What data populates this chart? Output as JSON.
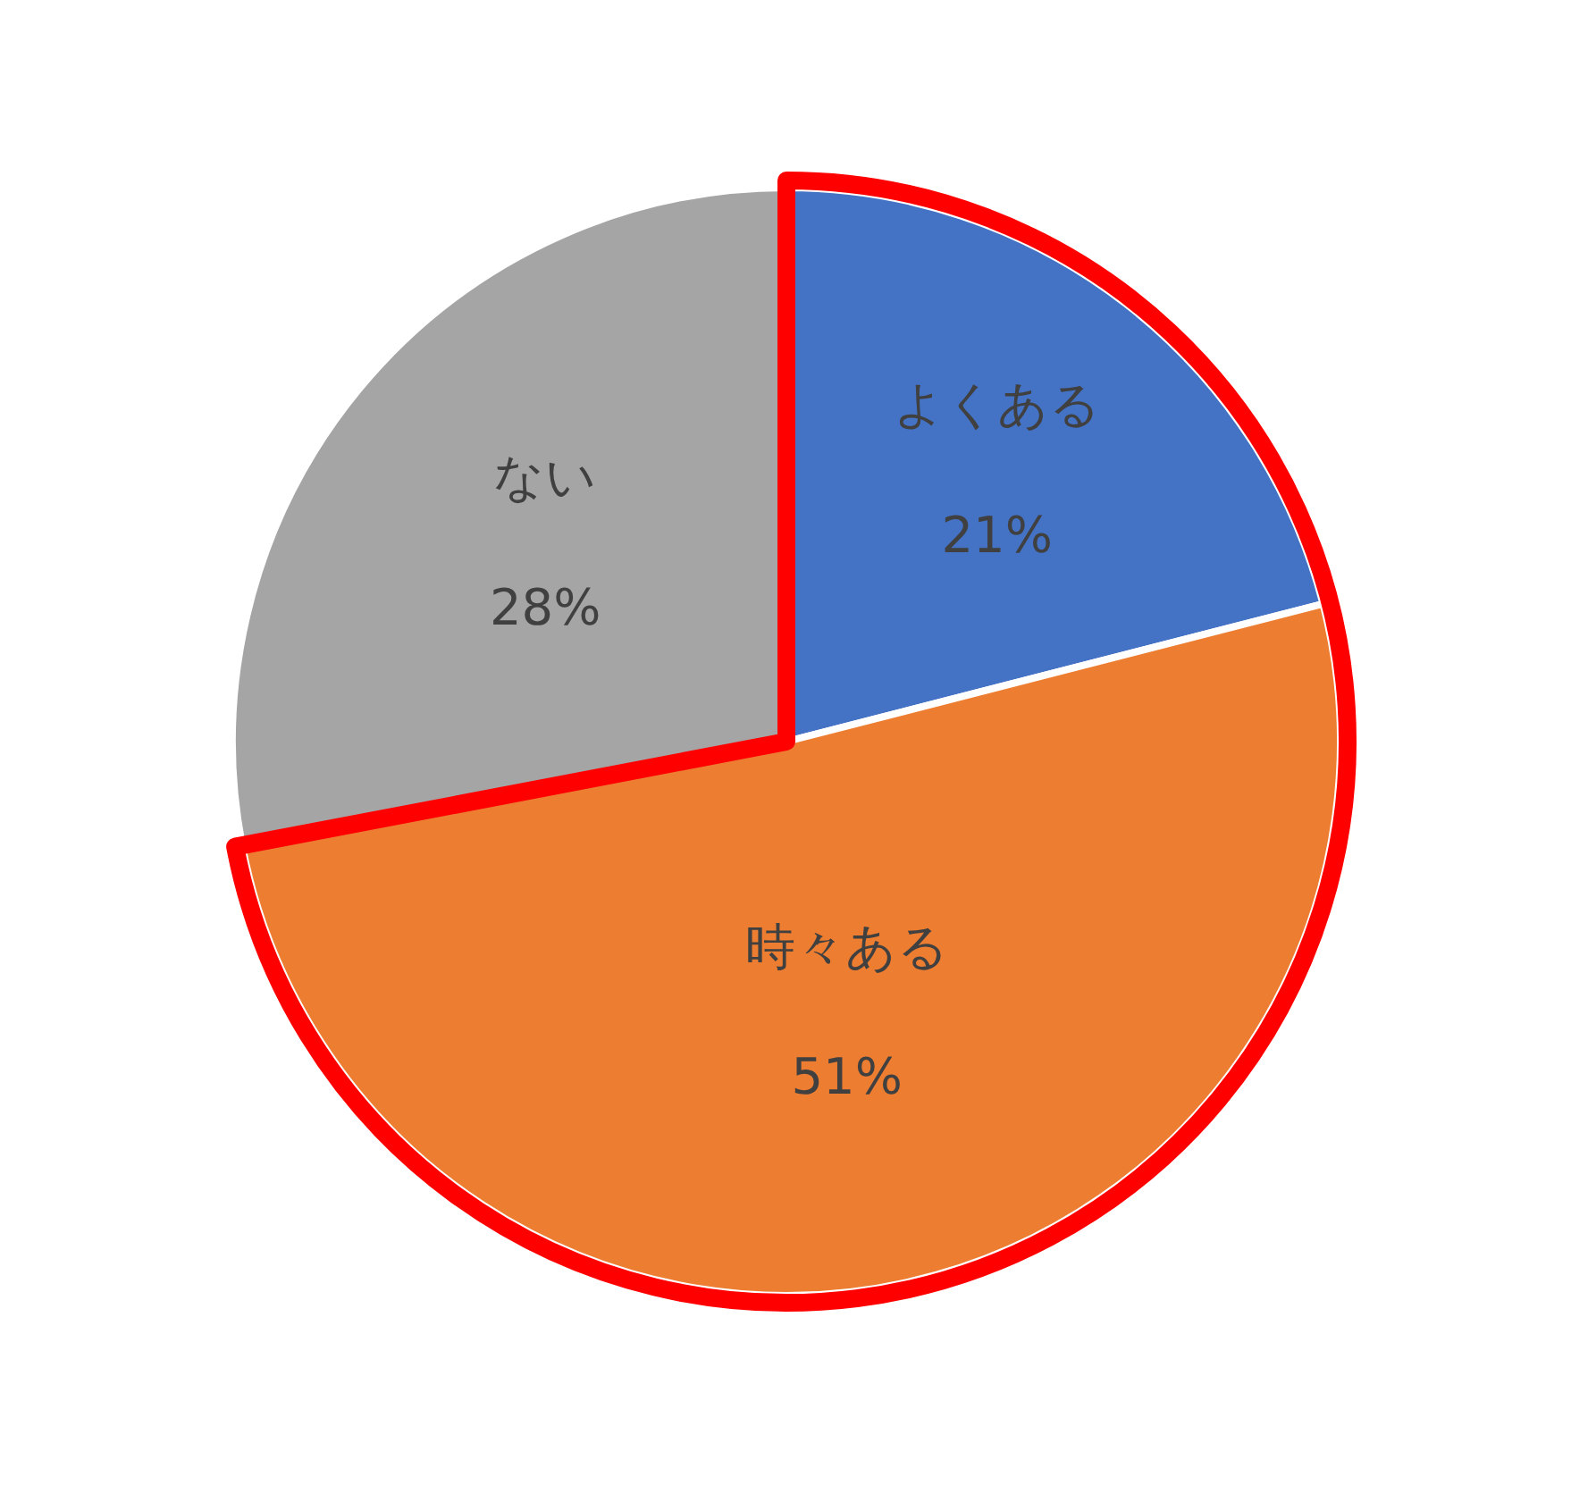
{
  "chart_data": {
    "type": "pie",
    "categories": [
      "よくある",
      "時々ある",
      "ない"
    ],
    "values": [
      21,
      51,
      28
    ],
    "colors": [
      "#4472c4",
      "#ed7d31",
      "#a5a5a5"
    ],
    "value_labels": [
      "21%",
      "51%",
      "28%"
    ]
  }
}
